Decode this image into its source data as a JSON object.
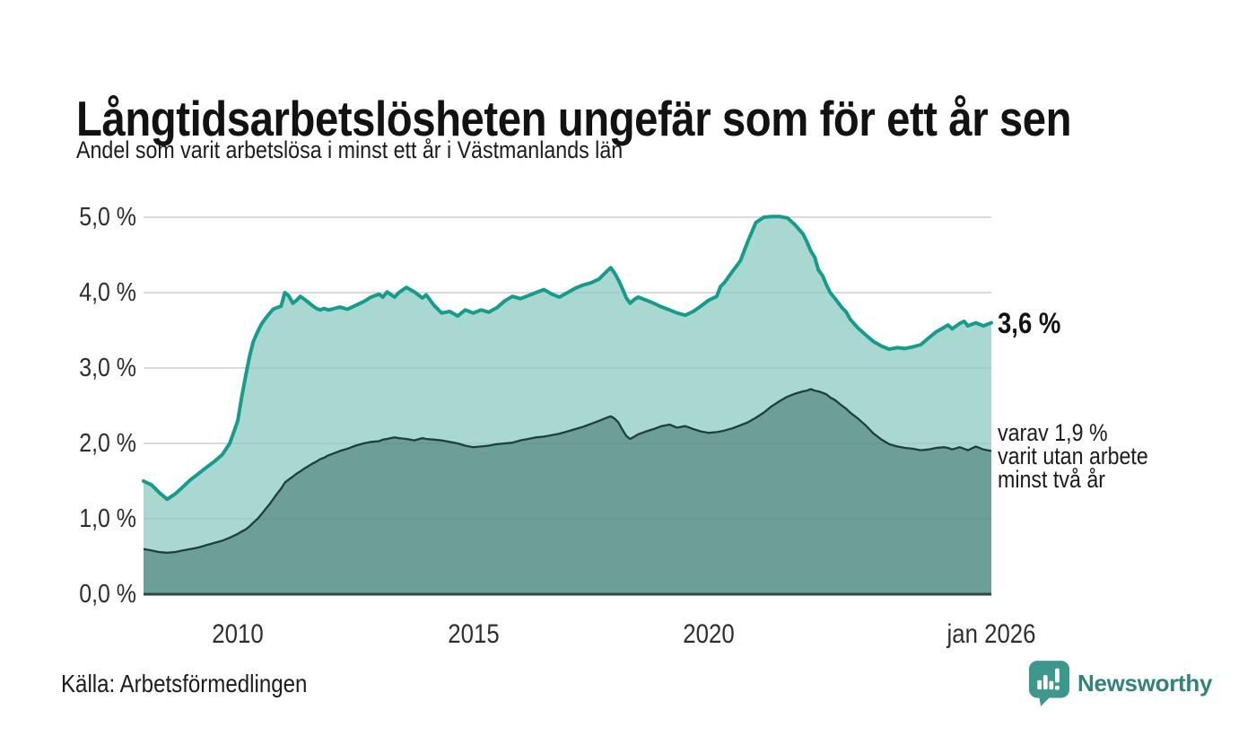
{
  "header": {
    "title": "Långtidsarbetslösheten ungefär som för ett år sen",
    "subtitle": "Andel som varit arbetslösa i minst ett år i Västmanlands län"
  },
  "chart_data": {
    "type": "area",
    "title": "Långtidsarbetslösheten ungefär som för ett år sen",
    "subtitle": "Andel som varit arbetslösa i minst ett år i Västmanlands län",
    "x_range": [
      2008,
      2026
    ],
    "y_range": [
      0,
      5
    ],
    "grid": "on",
    "legend_position": "right-annotations",
    "x_ticks": [
      {
        "value": 2010,
        "label": "2010"
      },
      {
        "value": 2015,
        "label": "2015"
      },
      {
        "value": 2020,
        "label": "2020"
      },
      {
        "value": 2026,
        "label": "jan 2026"
      }
    ],
    "y_ticks": [
      {
        "value": 0,
        "label": "0,0 %"
      },
      {
        "value": 1,
        "label": "1,0 %"
      },
      {
        "value": 2,
        "label": "2,0 %"
      },
      {
        "value": 3,
        "label": "3,0 %"
      },
      {
        "value": 4,
        "label": "4,0 %"
      },
      {
        "value": 5,
        "label": "5,0 %"
      }
    ],
    "series": [
      {
        "name": "arbetslösa minst ett år",
        "line_color": "#169b8c",
        "fill_color": "#a9d8d1",
        "end_value": 3.6
      },
      {
        "name": "arbetslösa minst två år",
        "line_color": "#1e3f3b",
        "fill_color": "#6e9e98",
        "end_value": 1.9
      }
    ],
    "colors": {
      "grid": "#dcdcdc",
      "grid_over_fill": "rgba(50,50,50,0.08)",
      "baseline": "#2b4a45"
    },
    "end_labels": {
      "total": "3,6 %",
      "two_year": "varav 1,9 %\nvarit utan arbete\nminst två år"
    },
    "points": [
      [
        2008.0,
        1.5,
        0.6
      ],
      [
        2008.17,
        1.45,
        0.58
      ],
      [
        2008.33,
        1.35,
        0.56
      ],
      [
        2008.5,
        1.26,
        0.55
      ],
      [
        2008.67,
        1.33,
        0.56
      ],
      [
        2008.83,
        1.42,
        0.58
      ],
      [
        2009.0,
        1.52,
        0.6
      ],
      [
        2009.17,
        1.6,
        0.62
      ],
      [
        2009.33,
        1.68,
        0.65
      ],
      [
        2009.5,
        1.76,
        0.68
      ],
      [
        2009.67,
        1.85,
        0.71
      ],
      [
        2009.83,
        2.0,
        0.75
      ],
      [
        2010.0,
        2.3,
        0.8
      ],
      [
        2010.08,
        2.6,
        0.83
      ],
      [
        2010.17,
        2.9,
        0.86
      ],
      [
        2010.25,
        3.15,
        0.9
      ],
      [
        2010.33,
        3.35,
        0.95
      ],
      [
        2010.42,
        3.48,
        1.0
      ],
      [
        2010.5,
        3.58,
        1.06
      ],
      [
        2010.58,
        3.65,
        1.12
      ],
      [
        2010.67,
        3.72,
        1.19
      ],
      [
        2010.75,
        3.78,
        1.26
      ],
      [
        2010.83,
        3.8,
        1.33
      ],
      [
        2010.92,
        3.82,
        1.4
      ],
      [
        2011.0,
        4.0,
        1.48
      ],
      [
        2011.08,
        3.96,
        1.52
      ],
      [
        2011.17,
        3.86,
        1.56
      ],
      [
        2011.25,
        3.9,
        1.6
      ],
      [
        2011.33,
        3.95,
        1.63
      ],
      [
        2011.42,
        3.91,
        1.67
      ],
      [
        2011.5,
        3.87,
        1.7
      ],
      [
        2011.58,
        3.83,
        1.73
      ],
      [
        2011.67,
        3.79,
        1.76
      ],
      [
        2011.75,
        3.77,
        1.79
      ],
      [
        2011.83,
        3.79,
        1.81
      ],
      [
        2011.92,
        3.77,
        1.84
      ],
      [
        2012.0,
        3.78,
        1.86
      ],
      [
        2012.17,
        3.81,
        1.9
      ],
      [
        2012.33,
        3.78,
        1.93
      ],
      [
        2012.5,
        3.83,
        1.97
      ],
      [
        2012.67,
        3.88,
        2.0
      ],
      [
        2012.83,
        3.94,
        2.02
      ],
      [
        2013.0,
        3.98,
        2.03
      ],
      [
        2013.08,
        3.94,
        2.05
      ],
      [
        2013.17,
        4.01,
        2.06
      ],
      [
        2013.33,
        3.94,
        2.08
      ],
      [
        2013.42,
        4.0,
        2.07
      ],
      [
        2013.58,
        4.07,
        2.06
      ],
      [
        2013.75,
        4.01,
        2.04
      ],
      [
        2013.92,
        3.93,
        2.07
      ],
      [
        2014.0,
        3.97,
        2.06
      ],
      [
        2014.17,
        3.83,
        2.05
      ],
      [
        2014.33,
        3.73,
        2.04
      ],
      [
        2014.5,
        3.75,
        2.02
      ],
      [
        2014.67,
        3.69,
        2.0
      ],
      [
        2014.83,
        3.77,
        1.97
      ],
      [
        2015.0,
        3.73,
        1.95
      ],
      [
        2015.17,
        3.77,
        1.96
      ],
      [
        2015.33,
        3.74,
        1.97
      ],
      [
        2015.5,
        3.8,
        1.99
      ],
      [
        2015.67,
        3.89,
        2.0
      ],
      [
        2015.83,
        3.95,
        2.01
      ],
      [
        2016.0,
        3.92,
        2.04
      ],
      [
        2016.17,
        3.96,
        2.06
      ],
      [
        2016.33,
        4.0,
        2.08
      ],
      [
        2016.5,
        4.04,
        2.09
      ],
      [
        2016.67,
        3.98,
        2.11
      ],
      [
        2016.83,
        3.94,
        2.13
      ],
      [
        2017.0,
        4.0,
        2.16
      ],
      [
        2017.17,
        4.06,
        2.19
      ],
      [
        2017.33,
        4.1,
        2.22
      ],
      [
        2017.5,
        4.13,
        2.26
      ],
      [
        2017.67,
        4.18,
        2.3
      ],
      [
        2017.83,
        4.28,
        2.34
      ],
      [
        2017.92,
        4.33,
        2.36
      ],
      [
        2018.0,
        4.26,
        2.33
      ],
      [
        2018.08,
        4.17,
        2.28
      ],
      [
        2018.17,
        4.05,
        2.18
      ],
      [
        2018.25,
        3.93,
        2.1
      ],
      [
        2018.33,
        3.86,
        2.06
      ],
      [
        2018.42,
        3.91,
        2.09
      ],
      [
        2018.5,
        3.94,
        2.12
      ],
      [
        2018.67,
        3.9,
        2.16
      ],
      [
        2018.83,
        3.86,
        2.19
      ],
      [
        2019.0,
        3.81,
        2.23
      ],
      [
        2019.17,
        3.77,
        2.25
      ],
      [
        2019.33,
        3.73,
        2.21
      ],
      [
        2019.5,
        3.7,
        2.23
      ],
      [
        2019.67,
        3.75,
        2.19
      ],
      [
        2019.83,
        3.82,
        2.16
      ],
      [
        2020.0,
        3.9,
        2.14
      ],
      [
        2020.17,
        3.95,
        2.15
      ],
      [
        2020.25,
        4.08,
        2.16
      ],
      [
        2020.33,
        4.13,
        2.17
      ],
      [
        2020.5,
        4.28,
        2.2
      ],
      [
        2020.67,
        4.42,
        2.24
      ],
      [
        2020.83,
        4.68,
        2.28
      ],
      [
        2021.0,
        4.93,
        2.34
      ],
      [
        2021.17,
        5.0,
        2.41
      ],
      [
        2021.33,
        5.01,
        2.49
      ],
      [
        2021.5,
        5.01,
        2.56
      ],
      [
        2021.67,
        4.99,
        2.62
      ],
      [
        2021.83,
        4.9,
        2.66
      ],
      [
        2022.0,
        4.78,
        2.69
      ],
      [
        2022.08,
        4.68,
        2.7
      ],
      [
        2022.17,
        4.55,
        2.72
      ],
      [
        2022.25,
        4.47,
        2.7
      ],
      [
        2022.33,
        4.3,
        2.69
      ],
      [
        2022.42,
        4.22,
        2.67
      ],
      [
        2022.5,
        4.1,
        2.65
      ],
      [
        2022.58,
        4.0,
        2.61
      ],
      [
        2022.67,
        3.93,
        2.58
      ],
      [
        2022.83,
        3.8,
        2.5
      ],
      [
        2022.92,
        3.74,
        2.46
      ],
      [
        2023.0,
        3.65,
        2.41
      ],
      [
        2023.17,
        3.53,
        2.33
      ],
      [
        2023.33,
        3.44,
        2.24
      ],
      [
        2023.5,
        3.35,
        2.13
      ],
      [
        2023.67,
        3.29,
        2.05
      ],
      [
        2023.83,
        3.25,
        1.99
      ],
      [
        2024.0,
        3.27,
        1.96
      ],
      [
        2024.17,
        3.26,
        1.94
      ],
      [
        2024.33,
        3.28,
        1.93
      ],
      [
        2024.5,
        3.31,
        1.91
      ],
      [
        2024.67,
        3.4,
        1.92
      ],
      [
        2024.83,
        3.48,
        1.94
      ],
      [
        2025.0,
        3.54,
        1.95
      ],
      [
        2025.08,
        3.57,
        1.94
      ],
      [
        2025.17,
        3.52,
        1.92
      ],
      [
        2025.33,
        3.59,
        1.95
      ],
      [
        2025.42,
        3.62,
        1.93
      ],
      [
        2025.5,
        3.56,
        1.91
      ],
      [
        2025.67,
        3.6,
        1.96
      ],
      [
        2025.83,
        3.56,
        1.92
      ],
      [
        2026.0,
        3.6,
        1.9
      ]
    ]
  },
  "footer": {
    "source": "Källa: Arbetsförmedlingen",
    "brand": "Newsworthy",
    "brand_color": "#33827c",
    "brand_icon_color": "#3d978c"
  }
}
